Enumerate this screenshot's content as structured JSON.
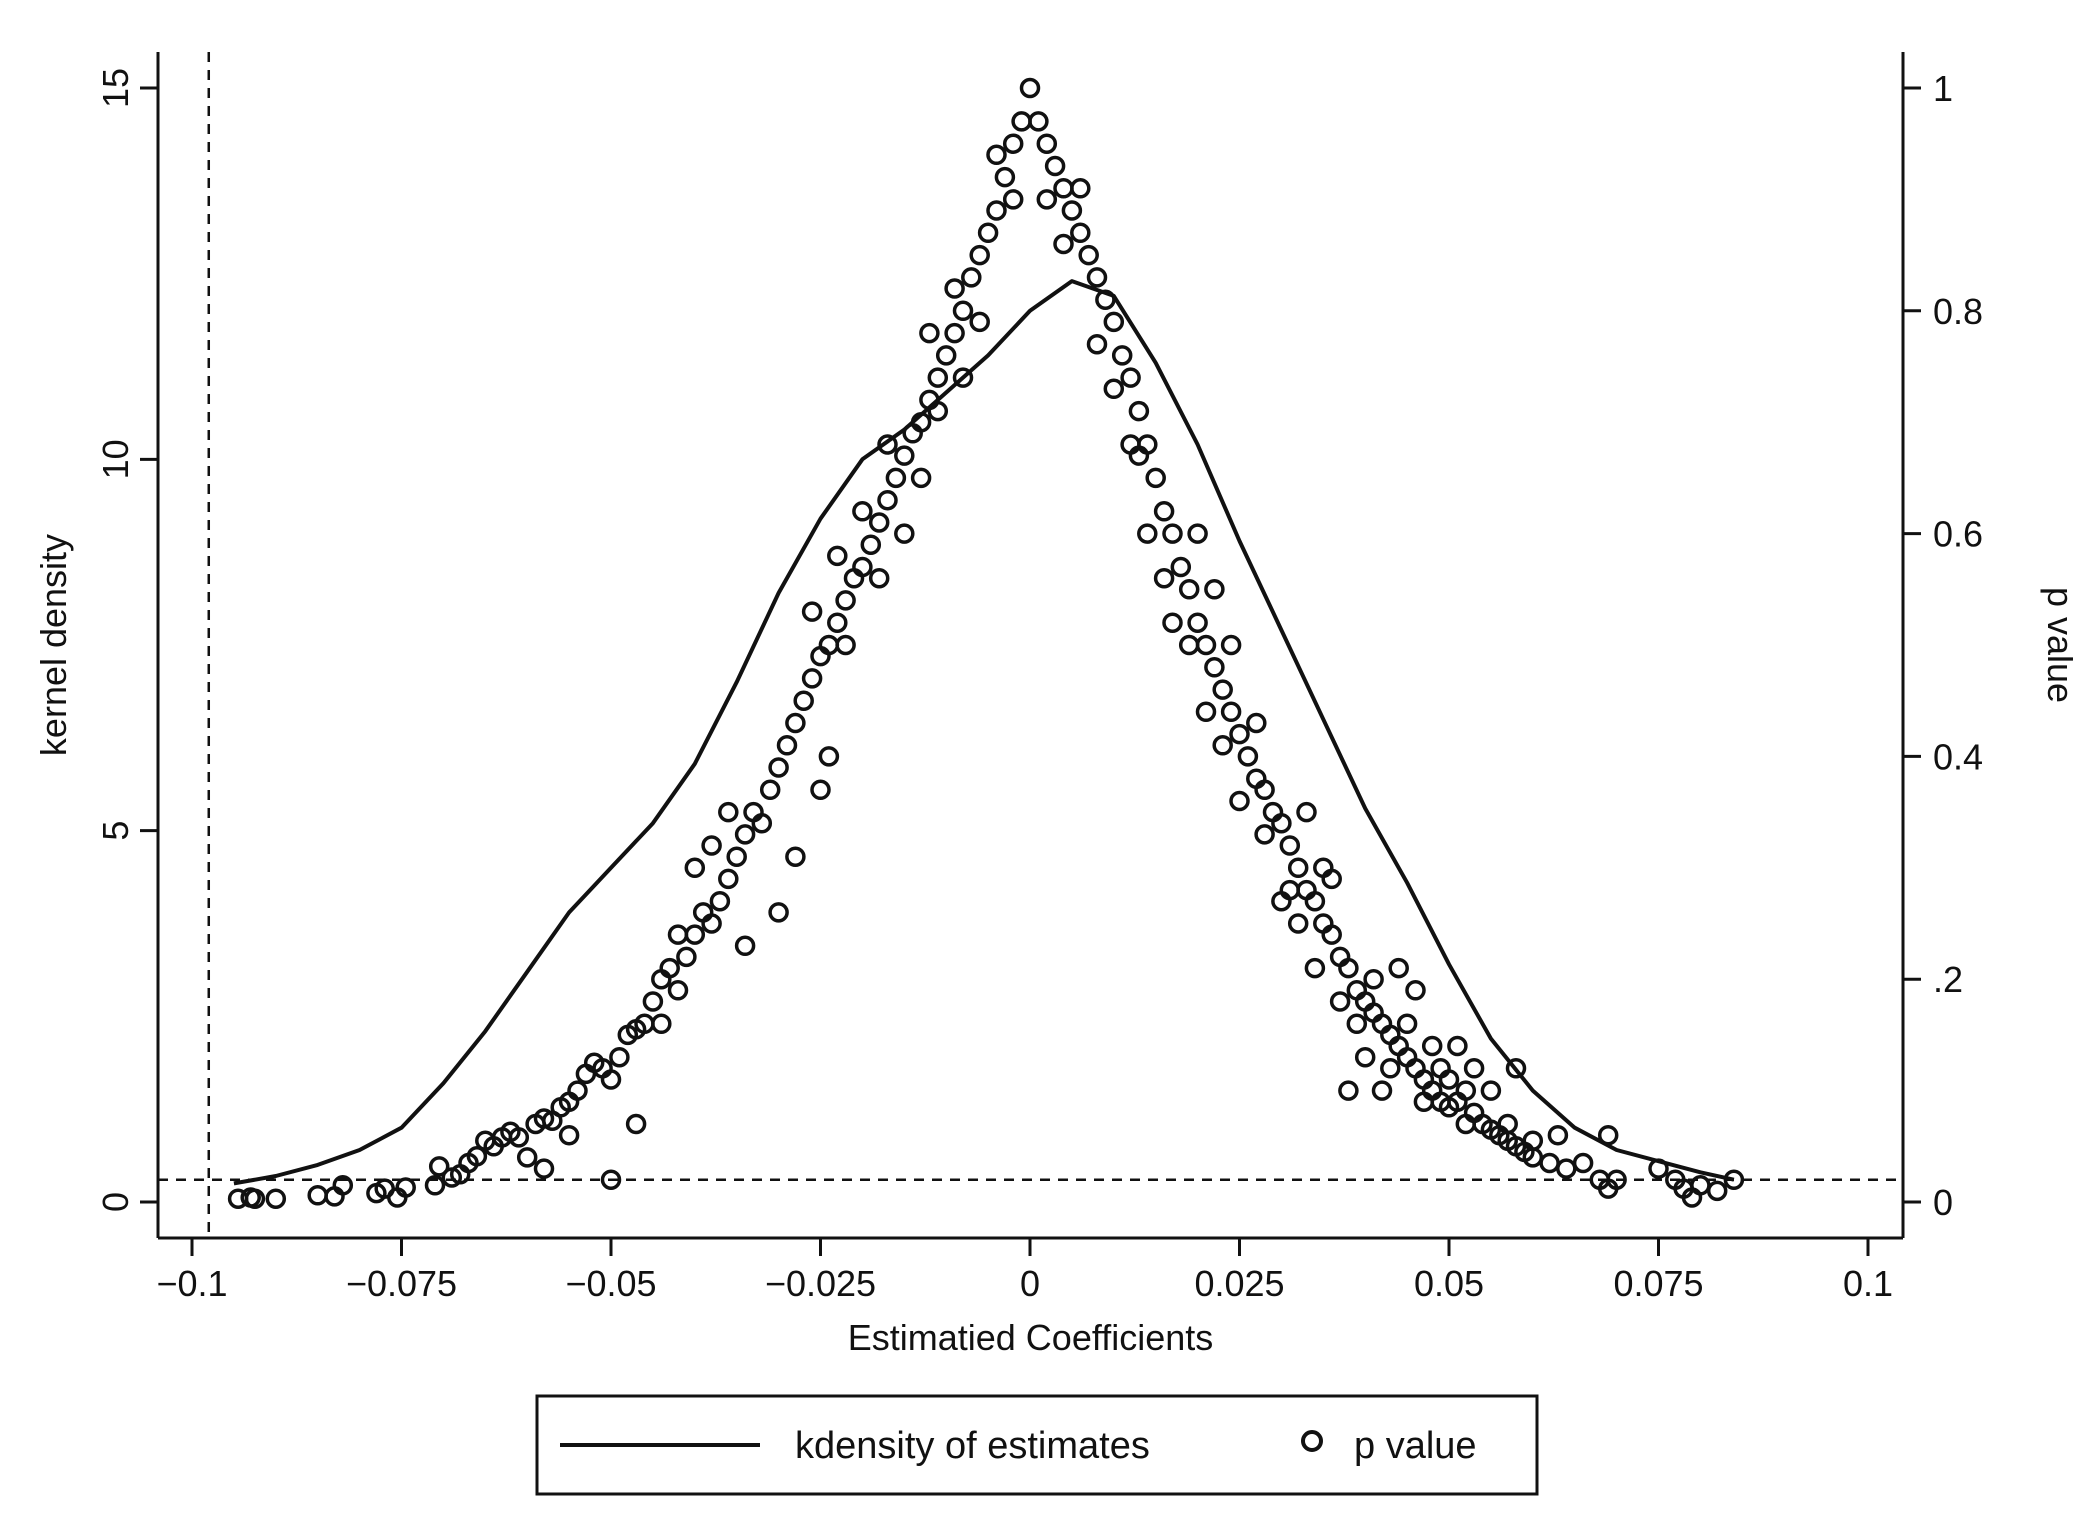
{
  "chart_data": {
    "type": "line+scatter",
    "xlabel": "Estimatied Coefficients",
    "ylabel_left": "kernel density",
    "ylabel_right": "p value",
    "xlim": [
      -0.1,
      0.1
    ],
    "ylim_left": [
      0,
      15
    ],
    "ylim_right": [
      0,
      1
    ],
    "x_ticks": [
      {
        "value": -0.1,
        "label": "−0.1"
      },
      {
        "value": -0.075,
        "label": "−0.075"
      },
      {
        "value": -0.05,
        "label": "−0.05"
      },
      {
        "value": -0.025,
        "label": "−0.025"
      },
      {
        "value": 0,
        "label": "0"
      },
      {
        "value": 0.025,
        "label": "0.025"
      },
      {
        "value": 0.05,
        "label": "0.05"
      },
      {
        "value": 0.075,
        "label": "0.075"
      },
      {
        "value": 0.1,
        "label": "0.1"
      }
    ],
    "y_left_ticks": [
      {
        "value": 0,
        "label": "0"
      },
      {
        "value": 5,
        "label": "5"
      },
      {
        "value": 10,
        "label": "10"
      },
      {
        "value": 15,
        "label": "15"
      }
    ],
    "y_right_ticks": [
      {
        "value": 0,
        "label": "0"
      },
      {
        "value": 0.2,
        "label": ".2"
      },
      {
        "value": 0.4,
        "label": "0.4"
      },
      {
        "value": 0.6,
        "label": "0.6"
      },
      {
        "value": 0.8,
        "label": "0.8"
      },
      {
        "value": 1,
        "label": "1"
      }
    ],
    "reference_lines": {
      "vertical_x": -0.098,
      "horizontal_p_value": 0.02
    },
    "kdensity": {
      "name": "kdensity of estimates",
      "x": [
        -0.095,
        -0.09,
        -0.085,
        -0.08,
        -0.075,
        -0.07,
        -0.065,
        -0.06,
        -0.055,
        -0.05,
        -0.045,
        -0.04,
        -0.035,
        -0.03,
        -0.025,
        -0.02,
        -0.015,
        -0.01,
        -0.005,
        0,
        0.005,
        0.01,
        0.015,
        0.02,
        0.025,
        0.03,
        0.035,
        0.04,
        0.045,
        0.05,
        0.055,
        0.06,
        0.065,
        0.07,
        0.075,
        0.08,
        0.084
      ],
      "y": [
        0.25,
        0.35,
        0.5,
        0.7,
        1.0,
        1.6,
        2.3,
        3.1,
        3.9,
        4.5,
        5.1,
        5.9,
        7.0,
        8.2,
        9.2,
        10.0,
        10.4,
        10.9,
        11.4,
        12.0,
        12.4,
        12.2,
        11.3,
        10.2,
        8.9,
        7.7,
        6.5,
        5.3,
        4.3,
        3.2,
        2.2,
        1.5,
        1.0,
        0.7,
        0.55,
        0.4,
        0.3
      ]
    },
    "p_value": {
      "name": "p value",
      "marker": "hollow-circle",
      "points": [
        [
          -0.0945,
          0.003
        ],
        [
          -0.093,
          0.004
        ],
        [
          -0.0925,
          0.003
        ],
        [
          -0.09,
          0.003
        ],
        [
          -0.085,
          0.006
        ],
        [
          -0.083,
          0.005
        ],
        [
          -0.082,
          0.015
        ],
        [
          -0.078,
          0.008
        ],
        [
          -0.077,
          0.012
        ],
        [
          -0.0755,
          0.004
        ],
        [
          -0.0745,
          0.013
        ],
        [
          -0.071,
          0.015
        ],
        [
          -0.0705,
          0.032
        ],
        [
          -0.069,
          0.022
        ],
        [
          -0.068,
          0.025
        ],
        [
          -0.067,
          0.035
        ],
        [
          -0.066,
          0.041
        ],
        [
          -0.065,
          0.055
        ],
        [
          -0.064,
          0.05
        ],
        [
          -0.063,
          0.058
        ],
        [
          -0.062,
          0.063
        ],
        [
          -0.061,
          0.058
        ],
        [
          -0.06,
          0.04
        ],
        [
          -0.059,
          0.07
        ],
        [
          -0.058,
          0.075
        ],
        [
          -0.057,
          0.073
        ],
        [
          -0.056,
          0.085
        ],
        [
          -0.055,
          0.09
        ],
        [
          -0.054,
          0.1
        ],
        [
          -0.053,
          0.115
        ],
        [
          -0.052,
          0.125
        ],
        [
          -0.051,
          0.12
        ],
        [
          -0.05,
          0.11
        ],
        [
          -0.049,
          0.13
        ],
        [
          -0.048,
          0.15
        ],
        [
          -0.047,
          0.155
        ],
        [
          -0.046,
          0.16
        ],
        [
          -0.045,
          0.18
        ],
        [
          -0.044,
          0.2
        ],
        [
          -0.043,
          0.21
        ],
        [
          -0.042,
          0.19
        ],
        [
          -0.041,
          0.22
        ],
        [
          -0.04,
          0.24
        ],
        [
          -0.039,
          0.26
        ],
        [
          -0.038,
          0.25
        ],
        [
          -0.037,
          0.27
        ],
        [
          -0.036,
          0.29
        ],
        [
          -0.035,
          0.31
        ],
        [
          -0.034,
          0.33
        ],
        [
          -0.033,
          0.35
        ],
        [
          -0.032,
          0.34
        ],
        [
          -0.031,
          0.37
        ],
        [
          -0.03,
          0.39
        ],
        [
          -0.029,
          0.41
        ],
        [
          -0.028,
          0.43
        ],
        [
          -0.027,
          0.45
        ],
        [
          -0.026,
          0.47
        ],
        [
          -0.025,
          0.49
        ],
        [
          -0.024,
          0.5
        ],
        [
          -0.023,
          0.52
        ],
        [
          -0.022,
          0.54
        ],
        [
          -0.021,
          0.56
        ],
        [
          -0.02,
          0.57
        ],
        [
          -0.019,
          0.59
        ],
        [
          -0.018,
          0.61
        ],
        [
          -0.017,
          0.63
        ],
        [
          -0.016,
          0.65
        ],
        [
          -0.015,
          0.67
        ],
        [
          -0.014,
          0.69
        ],
        [
          -0.013,
          0.7
        ],
        [
          -0.012,
          0.72
        ],
        [
          -0.011,
          0.74
        ],
        [
          -0.01,
          0.76
        ],
        [
          -0.009,
          0.78
        ],
        [
          -0.008,
          0.8
        ],
        [
          -0.007,
          0.83
        ],
        [
          -0.006,
          0.85
        ],
        [
          -0.005,
          0.87
        ],
        [
          -0.004,
          0.89
        ],
        [
          -0.003,
          0.92
        ],
        [
          -0.002,
          0.95
        ],
        [
          -0.001,
          0.97
        ],
        [
          0.0,
          1.0
        ],
        [
          0.001,
          0.97
        ],
        [
          0.002,
          0.95
        ],
        [
          0.003,
          0.93
        ],
        [
          0.004,
          0.91
        ],
        [
          0.005,
          0.89
        ],
        [
          0.006,
          0.87
        ],
        [
          0.007,
          0.85
        ],
        [
          0.008,
          0.83
        ],
        [
          0.009,
          0.81
        ],
        [
          0.01,
          0.79
        ],
        [
          0.011,
          0.76
        ],
        [
          0.012,
          0.74
        ],
        [
          0.013,
          0.71
        ],
        [
          0.014,
          0.68
        ],
        [
          0.015,
          0.65
        ],
        [
          0.016,
          0.62
        ],
        [
          0.017,
          0.6
        ],
        [
          0.018,
          0.57
        ],
        [
          0.019,
          0.55
        ],
        [
          0.02,
          0.52
        ],
        [
          0.021,
          0.5
        ],
        [
          0.022,
          0.48
        ],
        [
          0.023,
          0.46
        ],
        [
          0.024,
          0.44
        ],
        [
          0.025,
          0.42
        ],
        [
          0.026,
          0.4
        ],
        [
          0.027,
          0.38
        ],
        [
          0.028,
          0.37
        ],
        [
          0.029,
          0.35
        ],
        [
          0.03,
          0.34
        ],
        [
          0.031,
          0.32
        ],
        [
          0.032,
          0.3
        ],
        [
          0.033,
          0.28
        ],
        [
          0.034,
          0.27
        ],
        [
          0.035,
          0.25
        ],
        [
          0.036,
          0.24
        ],
        [
          0.037,
          0.22
        ],
        [
          0.038,
          0.21
        ],
        [
          0.039,
          0.19
        ],
        [
          0.04,
          0.18
        ],
        [
          0.041,
          0.17
        ],
        [
          0.042,
          0.16
        ],
        [
          0.043,
          0.15
        ],
        [
          0.044,
          0.14
        ],
        [
          0.045,
          0.13
        ],
        [
          0.046,
          0.12
        ],
        [
          0.047,
          0.11
        ],
        [
          0.048,
          0.1
        ],
        [
          0.049,
          0.09
        ],
        [
          0.05,
          0.085
        ],
        [
          0.051,
          0.09
        ],
        [
          0.052,
          0.1
        ],
        [
          0.053,
          0.08
        ],
        [
          0.054,
          0.07
        ],
        [
          0.055,
          0.065
        ],
        [
          0.056,
          0.06
        ],
        [
          0.057,
          0.055
        ],
        [
          0.058,
          0.05
        ],
        [
          0.059,
          0.045
        ],
        [
          0.06,
          0.04
        ],
        [
          0.062,
          0.035
        ],
        [
          0.064,
          0.03
        ],
        [
          0.066,
          0.035
        ],
        [
          0.068,
          0.02
        ],
        [
          0.069,
          0.012
        ],
        [
          0.07,
          0.02
        ],
        [
          0.075,
          0.03
        ],
        [
          0.077,
          0.02
        ],
        [
          0.078,
          0.012
        ],
        [
          0.079,
          0.004
        ],
        [
          0.08,
          0.015
        ],
        [
          0.082,
          0.01
        ],
        [
          0.084,
          0.02
        ],
        [
          -0.04,
          0.3
        ],
        [
          -0.038,
          0.32
        ],
        [
          -0.036,
          0.35
        ],
        [
          -0.026,
          0.53
        ],
        [
          -0.024,
          0.4
        ],
        [
          -0.023,
          0.58
        ],
        [
          -0.02,
          0.62
        ],
        [
          -0.017,
          0.68
        ],
        [
          -0.012,
          0.78
        ],
        [
          -0.009,
          0.82
        ],
        [
          -0.006,
          0.79
        ],
        [
          -0.004,
          0.94
        ],
        [
          0.006,
          0.91
        ],
        [
          0.008,
          0.77
        ],
        [
          0.012,
          0.68
        ],
        [
          0.014,
          0.6
        ],
        [
          0.017,
          0.52
        ],
        [
          0.02,
          0.6
        ],
        [
          0.022,
          0.55
        ],
        [
          0.024,
          0.5
        ],
        [
          0.027,
          0.43
        ],
        [
          0.03,
          0.27
        ],
        [
          0.032,
          0.25
        ],
        [
          0.034,
          0.21
        ],
        [
          0.036,
          0.29
        ],
        [
          0.038,
          0.1
        ],
        [
          0.04,
          0.13
        ],
        [
          0.042,
          0.1
        ],
        [
          0.044,
          0.21
        ],
        [
          0.046,
          0.19
        ],
        [
          0.048,
          0.14
        ],
        [
          0.05,
          0.11
        ],
        [
          0.052,
          0.07
        ],
        [
          0.055,
          0.1
        ],
        [
          0.058,
          0.12
        ],
        [
          0.06,
          0.055
        ],
        [
          0.063,
          0.06
        ],
        [
          0.069,
          0.06
        ],
        [
          -0.058,
          0.03
        ],
        [
          -0.055,
          0.06
        ],
        [
          -0.05,
          0.02
        ],
        [
          -0.047,
          0.07
        ],
        [
          -0.044,
          0.16
        ],
        [
          -0.042,
          0.24
        ],
        [
          -0.034,
          0.23
        ],
        [
          -0.03,
          0.26
        ],
        [
          -0.028,
          0.31
        ],
        [
          -0.025,
          0.37
        ],
        [
          -0.022,
          0.5
        ],
        [
          -0.018,
          0.56
        ],
        [
          -0.015,
          0.6
        ],
        [
          -0.013,
          0.65
        ],
        [
          -0.011,
          0.71
        ],
        [
          -0.008,
          0.74
        ],
        [
          -0.002,
          0.9
        ],
        [
          0.002,
          0.9
        ],
        [
          0.004,
          0.86
        ],
        [
          0.01,
          0.73
        ],
        [
          0.013,
          0.67
        ],
        [
          0.016,
          0.56
        ],
        [
          0.019,
          0.5
        ],
        [
          0.021,
          0.44
        ],
        [
          0.023,
          0.41
        ],
        [
          0.025,
          0.36
        ],
        [
          0.028,
          0.33
        ],
        [
          0.031,
          0.28
        ],
        [
          0.033,
          0.35
        ],
        [
          0.035,
          0.3
        ],
        [
          0.037,
          0.18
        ],
        [
          0.039,
          0.16
        ],
        [
          0.041,
          0.2
        ],
        [
          0.043,
          0.12
        ],
        [
          0.045,
          0.16
        ],
        [
          0.047,
          0.09
        ],
        [
          0.049,
          0.12
        ],
        [
          0.051,
          0.14
        ],
        [
          0.053,
          0.12
        ],
        [
          0.057,
          0.07
        ]
      ]
    },
    "legend": {
      "position": "bottom",
      "entries": [
        {
          "label": "kdensity of estimates",
          "symbol": "line"
        },
        {
          "label": "p value",
          "symbol": "hollow-circle"
        }
      ]
    },
    "grid": false
  }
}
